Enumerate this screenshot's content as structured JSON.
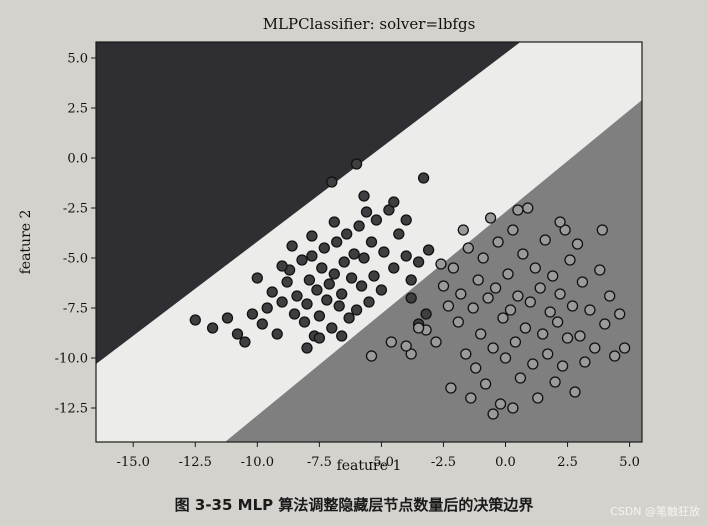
{
  "chart_data": {
    "type": "scatter",
    "title": "MLPClassifier: solver=lbfgs",
    "xlabel": "feature 1",
    "ylabel": "feature 2",
    "xlim": [
      -16.5,
      5.5
    ],
    "ylim": [
      -14.2,
      5.8
    ],
    "xticks": [
      -15.0,
      -12.5,
      -10.0,
      -7.5,
      -5.0,
      -2.5,
      0.0,
      2.5,
      5.0
    ],
    "yticks": [
      5.0,
      2.5,
      0.0,
      -2.5,
      -5.0,
      -7.5,
      -10.0,
      -12.5
    ],
    "xtick_labels": [
      "-15.0",
      "-12.5",
      "-10.0",
      "-7.5",
      "-5.0",
      "-2.5",
      "0.0",
      "2.5",
      "5.0"
    ],
    "ytick_labels": [
      "5.0",
      "2.5",
      "0.0",
      "−12.5"
    ],
    "ytick_labels_full": [
      "5.0",
      "2.5",
      "0.0",
      "-2.5",
      "-5.0",
      "-7.5",
      "-10.0",
      "-12.5"
    ],
    "grid": false,
    "region_colors": {
      "class0": "#2f2f33",
      "middle": "#efefed",
      "class1": "#7f7f80"
    },
    "boundaries": [
      {
        "x": [
          -16.5,
          0.6
        ],
        "y": [
          -10.3,
          5.8
        ]
      },
      {
        "x": [
          -11.3,
          5.5
        ],
        "y": [
          -14.2,
          2.9
        ]
      }
    ],
    "series": [
      {
        "class": 0,
        "color": "#3f3f42",
        "points": [
          [
            -12.5,
            -8.1
          ],
          [
            -11.8,
            -8.5
          ],
          [
            -11.2,
            -8.0
          ],
          [
            -10.8,
            -8.8
          ],
          [
            -10.5,
            -9.2
          ],
          [
            -10.2,
            -7.8
          ],
          [
            -9.8,
            -8.3
          ],
          [
            -9.6,
            -7.5
          ],
          [
            -9.4,
            -6.7
          ],
          [
            -9.2,
            -8.8
          ],
          [
            -9.0,
            -7.2
          ],
          [
            -8.8,
            -6.2
          ],
          [
            -8.7,
            -5.6
          ],
          [
            -8.5,
            -7.8
          ],
          [
            -8.4,
            -6.9
          ],
          [
            -8.2,
            -5.1
          ],
          [
            -8.1,
            -8.2
          ],
          [
            -8.0,
            -7.3
          ],
          [
            -7.9,
            -6.1
          ],
          [
            -7.8,
            -4.9
          ],
          [
            -7.7,
            -8.9
          ],
          [
            -7.6,
            -6.6
          ],
          [
            -7.5,
            -7.9
          ],
          [
            -7.4,
            -5.5
          ],
          [
            -7.3,
            -4.5
          ],
          [
            -7.2,
            -7.1
          ],
          [
            -7.1,
            -6.3
          ],
          [
            -7.0,
            -8.5
          ],
          [
            -6.9,
            -5.8
          ],
          [
            -6.8,
            -4.2
          ],
          [
            -6.7,
            -7.4
          ],
          [
            -6.6,
            -6.8
          ],
          [
            -6.5,
            -5.2
          ],
          [
            -6.4,
            -3.8
          ],
          [
            -6.3,
            -8.0
          ],
          [
            -6.2,
            -6.0
          ],
          [
            -6.1,
            -4.8
          ],
          [
            -6.0,
            -7.6
          ],
          [
            -5.9,
            -3.4
          ],
          [
            -5.8,
            -6.4
          ],
          [
            -5.7,
            -5.0
          ],
          [
            -5.6,
            -2.7
          ],
          [
            -5.5,
            -7.2
          ],
          [
            -5.4,
            -4.2
          ],
          [
            -5.3,
            -5.9
          ],
          [
            -5.2,
            -3.1
          ],
          [
            -5.0,
            -6.6
          ],
          [
            -4.9,
            -4.7
          ],
          [
            -4.7,
            -2.6
          ],
          [
            -4.5,
            -5.5
          ],
          [
            -4.3,
            -3.8
          ],
          [
            -4.0,
            -4.9
          ],
          [
            -3.8,
            -6.1
          ],
          [
            -3.5,
            -5.2
          ],
          [
            -3.3,
            -1.0
          ],
          [
            -3.1,
            -4.6
          ],
          [
            -6.0,
            -0.3
          ],
          [
            -7.0,
            -1.2
          ],
          [
            -5.7,
            -1.9
          ],
          [
            -4.5,
            -2.2
          ],
          [
            -4.0,
            -3.1
          ],
          [
            -3.8,
            -7.0
          ],
          [
            -3.5,
            -8.3
          ],
          [
            -3.2,
            -7.8
          ],
          [
            -8.0,
            -9.5
          ],
          [
            -7.5,
            -9.0
          ],
          [
            -6.6,
            -8.9
          ],
          [
            -9.0,
            -5.4
          ],
          [
            -10.0,
            -6.0
          ],
          [
            -8.6,
            -4.4
          ],
          [
            -6.9,
            -3.2
          ],
          [
            -7.8,
            -3.9
          ]
        ]
      },
      {
        "class": 1,
        "color": "#9a9a9c",
        "points": [
          [
            -5.4,
            -9.9
          ],
          [
            -4.6,
            -9.2
          ],
          [
            -3.8,
            -9.8
          ],
          [
            -3.2,
            -8.6
          ],
          [
            -2.8,
            -9.2
          ],
          [
            -2.5,
            -6.4
          ],
          [
            -2.3,
            -7.4
          ],
          [
            -2.1,
            -5.5
          ],
          [
            -1.9,
            -8.2
          ],
          [
            -1.8,
            -6.8
          ],
          [
            -1.6,
            -9.8
          ],
          [
            -1.5,
            -4.5
          ],
          [
            -1.3,
            -7.5
          ],
          [
            -1.2,
            -10.5
          ],
          [
            -1.1,
            -6.1
          ],
          [
            -1.0,
            -8.8
          ],
          [
            -0.9,
            -5.0
          ],
          [
            -0.8,
            -11.3
          ],
          [
            -0.7,
            -7.0
          ],
          [
            -0.6,
            -3.0
          ],
          [
            -0.5,
            -9.5
          ],
          [
            -0.4,
            -6.5
          ],
          [
            -0.3,
            -4.2
          ],
          [
            -0.2,
            -12.3
          ],
          [
            -0.1,
            -8.0
          ],
          [
            0.0,
            -10.0
          ],
          [
            0.1,
            -5.8
          ],
          [
            0.2,
            -7.6
          ],
          [
            0.3,
            -3.6
          ],
          [
            0.4,
            -9.2
          ],
          [
            0.5,
            -6.9
          ],
          [
            0.6,
            -11.0
          ],
          [
            0.7,
            -4.8
          ],
          [
            0.8,
            -8.5
          ],
          [
            0.9,
            -2.5
          ],
          [
            1.0,
            -7.2
          ],
          [
            1.1,
            -10.3
          ],
          [
            1.2,
            -5.5
          ],
          [
            1.3,
            -12.0
          ],
          [
            1.4,
            -6.5
          ],
          [
            1.5,
            -8.8
          ],
          [
            1.6,
            -4.1
          ],
          [
            1.7,
            -9.8
          ],
          [
            1.8,
            -7.7
          ],
          [
            1.9,
            -5.9
          ],
          [
            2.0,
            -11.2
          ],
          [
            2.1,
            -8.2
          ],
          [
            2.2,
            -6.8
          ],
          [
            2.3,
            -10.4
          ],
          [
            2.4,
            -3.6
          ],
          [
            2.5,
            -9.0
          ],
          [
            2.6,
            -5.1
          ],
          [
            2.7,
            -7.4
          ],
          [
            2.8,
            -11.7
          ],
          [
            2.9,
            -4.3
          ],
          [
            3.0,
            -8.9
          ],
          [
            3.1,
            -6.2
          ],
          [
            3.2,
            -10.2
          ],
          [
            3.4,
            -7.6
          ],
          [
            3.6,
            -9.5
          ],
          [
            3.8,
            -5.6
          ],
          [
            4.0,
            -8.3
          ],
          [
            4.2,
            -6.9
          ],
          [
            4.4,
            -9.9
          ],
          [
            4.6,
            -7.8
          ],
          [
            4.8,
            -9.5
          ],
          [
            -2.2,
            -11.5
          ],
          [
            -1.4,
            -12.0
          ],
          [
            -0.5,
            -12.8
          ],
          [
            0.3,
            -12.5
          ],
          [
            -2.6,
            -5.3
          ],
          [
            -3.5,
            -8.5
          ],
          [
            -4.0,
            -9.4
          ],
          [
            -1.7,
            -3.6
          ],
          [
            0.5,
            -2.6
          ],
          [
            2.2,
            -3.2
          ],
          [
            3.9,
            -3.6
          ]
        ]
      }
    ]
  },
  "caption": "图 3-35   MLP 算法调整隐藏层节点数量后的决策边界",
  "watermark": "CSDN @笔触狂放"
}
